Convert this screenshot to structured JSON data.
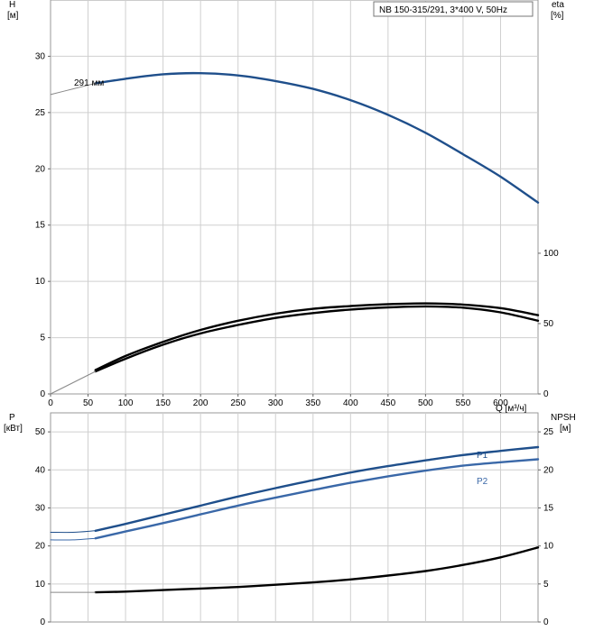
{
  "chart_data": [
    {
      "type": "line",
      "title": "NB 150-315/291, 3*400 V, 50Hz",
      "xlabel": "Q [м³/ч]",
      "ylabel": "H\n[м]",
      "y2label": "eta\n[%]",
      "xlim": [
        0,
        650
      ],
      "ylim": [
        0,
        35
      ],
      "y2lim": [
        0,
        280
      ],
      "xticks": [
        "0",
        "50",
        "100",
        "150",
        "200",
        "250",
        "300",
        "350",
        "400",
        "450",
        "500",
        "550",
        "600"
      ],
      "yticks": [
        "0",
        "5",
        "10",
        "15",
        "20",
        "25",
        "30"
      ],
      "y2ticks": [
        "0",
        "50",
        "100"
      ],
      "grid": true,
      "annotation": "291 мм",
      "series": [
        {
          "name": "H",
          "axis": "left",
          "color": "#1f4f8b",
          "x": [
            60,
            100,
            150,
            200,
            250,
            300,
            350,
            400,
            450,
            500,
            550,
            600,
            650
          ],
          "y": [
            27.6,
            28.0,
            28.4,
            28.5,
            28.3,
            27.8,
            27.1,
            26.1,
            24.8,
            23.2,
            21.3,
            19.3,
            17.0
          ]
        },
        {
          "name": "H-extension",
          "axis": "left",
          "thin": true,
          "color": "#888888",
          "x": [
            0,
            30,
            60
          ],
          "y": [
            26.6,
            27.1,
            27.6
          ]
        },
        {
          "name": "eta",
          "axis": "right",
          "color": "#000000",
          "x": [
            60,
            100,
            150,
            200,
            250,
            300,
            350,
            400,
            450,
            500,
            550,
            600,
            650
          ],
          "y": [
            16,
            25,
            35,
            43,
            49,
            54,
            57.5,
            60,
            61.5,
            62.2,
            61.3,
            58,
            52
          ]
        },
        {
          "name": "eta-2",
          "axis": "right",
          "color": "#000000",
          "x": [
            60,
            100,
            150,
            200,
            250,
            300,
            350,
            400,
            450,
            500,
            550,
            600,
            650
          ],
          "y": [
            17,
            27,
            37,
            45.5,
            52,
            57,
            60.5,
            62.5,
            63.8,
            64.3,
            63.5,
            61,
            56
          ]
        },
        {
          "name": "eta-extension",
          "axis": "right",
          "thin": true,
          "color": "#888888",
          "x": [
            0,
            60
          ],
          "y": [
            0,
            16
          ]
        }
      ]
    },
    {
      "type": "line",
      "xlabel": "",
      "ylabel": "P\n[кВт]",
      "y2label": "NPSH\n[м]",
      "xlim": [
        0,
        650
      ],
      "ylim": [
        0,
        55
      ],
      "y2lim": [
        0,
        27.5
      ],
      "yticks": [
        "0",
        "10",
        "20",
        "30",
        "40",
        "50"
      ],
      "y2ticks": [
        "0",
        "5",
        "10",
        "15",
        "20",
        "25"
      ],
      "grid": true,
      "series": [
        {
          "name": "P1",
          "axis": "left",
          "color": "#1f4f8b",
          "x": [
            60,
            100,
            150,
            200,
            250,
            300,
            350,
            400,
            450,
            500,
            550,
            600,
            650
          ],
          "y": [
            24.0,
            25.8,
            28.2,
            30.6,
            33.0,
            35.2,
            37.3,
            39.3,
            41.0,
            42.5,
            43.9,
            45.0,
            46.0
          ]
        },
        {
          "name": "P1-extension",
          "axis": "left",
          "thin": true,
          "color": "#1f4f8b",
          "x": [
            0,
            30,
            60
          ],
          "y": [
            23.6,
            23.6,
            24.0
          ]
        },
        {
          "name": "P2",
          "axis": "left",
          "color": "#3a68a8",
          "x": [
            60,
            100,
            150,
            200,
            250,
            300,
            350,
            400,
            450,
            500,
            550,
            600,
            650
          ],
          "y": [
            22.0,
            23.8,
            26.0,
            28.3,
            30.6,
            32.7,
            34.7,
            36.6,
            38.3,
            39.8,
            41.1,
            42.0,
            42.8
          ]
        },
        {
          "name": "P2-extension",
          "axis": "left",
          "thin": true,
          "color": "#3a68a8",
          "x": [
            0,
            30,
            60
          ],
          "y": [
            21.6,
            21.6,
            22.0
          ]
        },
        {
          "name": "NPSH",
          "axis": "right",
          "color": "#000000",
          "x": [
            60,
            100,
            150,
            200,
            250,
            300,
            350,
            400,
            450,
            500,
            550,
            600,
            650
          ],
          "y": [
            3.9,
            4.0,
            4.2,
            4.4,
            4.6,
            4.9,
            5.2,
            5.6,
            6.1,
            6.7,
            7.5,
            8.5,
            9.8
          ]
        },
        {
          "name": "NPSH-extension",
          "axis": "right",
          "thin": true,
          "color": "#888888",
          "x": [
            0,
            60
          ],
          "y": [
            3.9,
            3.9
          ]
        }
      ],
      "labels": [
        "P1",
        "P2"
      ]
    }
  ]
}
